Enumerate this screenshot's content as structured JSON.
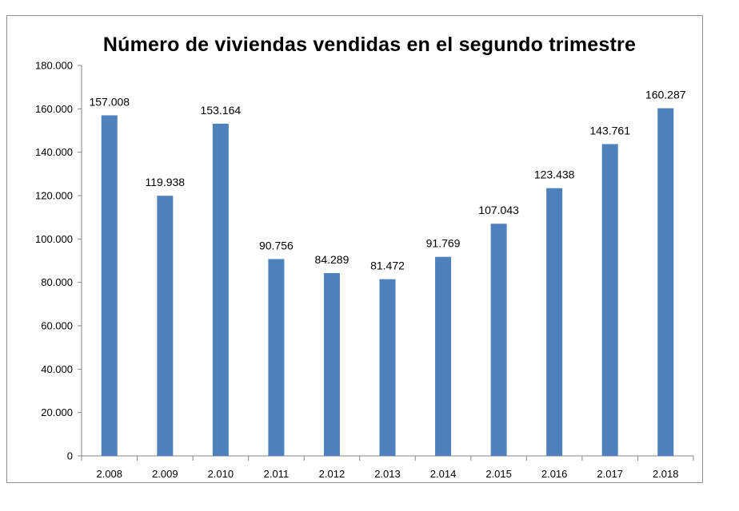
{
  "chart_data": {
    "type": "bar",
    "title": "Número de viviendas vendidas en el segundo trimestre",
    "xlabel": "",
    "ylabel": "",
    "categories": [
      "2.008",
      "2.009",
      "2.010",
      "2.011",
      "2.012",
      "2.013",
      "2.014",
      "2.015",
      "2.016",
      "2.017",
      "2.018"
    ],
    "values": [
      157008,
      119938,
      153164,
      90756,
      84289,
      81472,
      91769,
      107043,
      123438,
      143761,
      160287
    ],
    "value_labels": [
      "157.008",
      "119.938",
      "153.164",
      "90.756",
      "84.289",
      "81.472",
      "91.769",
      "107.043",
      "123.438",
      "143.761",
      "160.287"
    ],
    "ylim": [
      0,
      180000
    ],
    "yticks": [
      0,
      20000,
      40000,
      60000,
      80000,
      100000,
      120000,
      140000,
      160000,
      180000
    ],
    "ytick_labels": [
      "0",
      "20.000",
      "40.000",
      "60.000",
      "80.000",
      "100.000",
      "120.000",
      "140.000",
      "160.000",
      "180.000"
    ],
    "grid": false,
    "legend": "none",
    "bar_color": "#4f81bd"
  }
}
